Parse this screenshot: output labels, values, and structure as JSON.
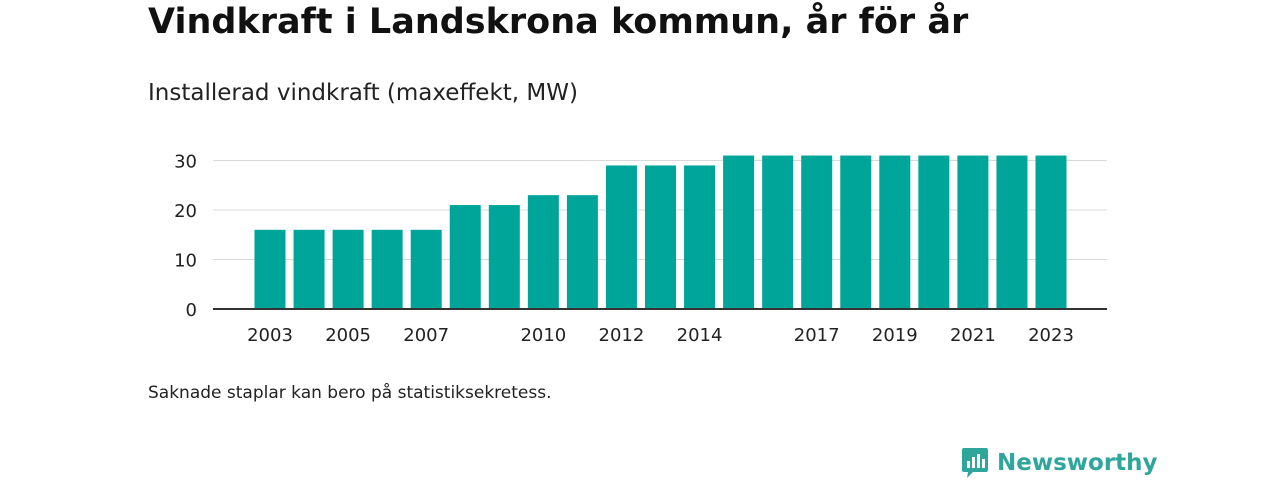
{
  "title": "Vindkraft i Landskrona kommun, år för år",
  "subtitle": "Installerad vindkraft (maxeffekt, MW)",
  "footnote": "Saknade staplar kan bero på statistiksekretess.",
  "brand": {
    "name": "Newsworthy",
    "icon": "newsworthy-logo-icon",
    "color": "#2ea79a"
  },
  "chart_data": {
    "type": "bar",
    "categories": [
      "2003",
      "2004",
      "2005",
      "2006",
      "2007",
      "2008",
      "2009",
      "2010",
      "2011",
      "2012",
      "2013",
      "2014",
      "2015",
      "2016",
      "2017",
      "2018",
      "2019",
      "2020",
      "2021",
      "2022",
      "2023"
    ],
    "values": [
      16,
      16,
      16,
      16,
      16,
      21,
      21,
      23,
      23,
      29,
      29,
      29,
      31,
      31,
      31,
      31,
      31,
      31,
      31,
      31,
      31
    ],
    "x_tick_labels": [
      "2003",
      "2005",
      "2007",
      "2010",
      "2012",
      "2014",
      "2017",
      "2019",
      "2021",
      "2023"
    ],
    "y_ticks": [
      0,
      10,
      20,
      30
    ],
    "ylim": [
      0,
      31
    ],
    "grid": true,
    "bar_color": "#00a59a"
  }
}
